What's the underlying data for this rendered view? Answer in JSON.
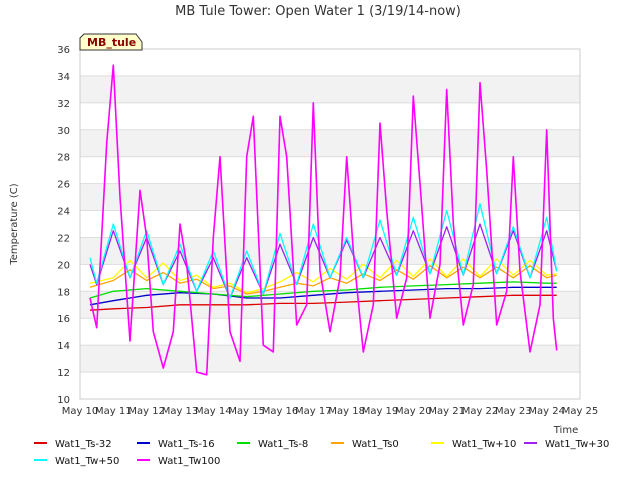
{
  "chart_data": {
    "type": "line",
    "title": "MB Tule Tower: Open Water 1 (3/19/14-now)",
    "xlabel": "Time",
    "ylabel": "Temperature (C)",
    "ylim": [
      10,
      36
    ],
    "yticks": [
      10,
      12,
      14,
      16,
      18,
      20,
      22,
      24,
      26,
      28,
      30,
      32,
      34,
      36
    ],
    "xlim": [
      10,
      25
    ],
    "xticks": [
      10,
      11,
      12,
      13,
      14,
      15,
      16,
      17,
      18,
      19,
      20,
      21,
      22,
      23,
      24,
      25
    ],
    "xtick_labels": [
      "May 10",
      "May 11",
      "May 12",
      "May 13",
      "May 14",
      "May 15",
      "May 16",
      "May 17",
      "May 18",
      "May 19",
      "May 20",
      "May 21",
      "May 22",
      "May 23",
      "May 24",
      "May 25"
    ],
    "grid": true,
    "station_badge": "MB_tule",
    "legend_position": "bottom",
    "series": [
      {
        "name": "Wat1_Ts-32",
        "color": "#dd0000",
        "x": [
          10.3,
          11,
          12,
          13,
          14,
          15,
          16,
          17,
          18,
          19,
          20,
          21,
          22,
          23,
          24,
          24.3
        ],
        "values": [
          16.6,
          16.7,
          16.8,
          17.0,
          17.0,
          17.0,
          17.1,
          17.1,
          17.2,
          17.3,
          17.4,
          17.5,
          17.6,
          17.7,
          17.7,
          17.7
        ]
      },
      {
        "name": "Wat1_Ts-16",
        "color": "#0000cc",
        "x": [
          10.3,
          11,
          12,
          13,
          14,
          15,
          16,
          17,
          18,
          19,
          20,
          21,
          22,
          23,
          24,
          24.3
        ],
        "values": [
          17.0,
          17.3,
          17.7,
          17.9,
          17.8,
          17.5,
          17.5,
          17.7,
          17.9,
          18.0,
          18.1,
          18.2,
          18.2,
          18.3,
          18.3,
          18.3
        ]
      },
      {
        "name": "Wat1_Ts-8",
        "color": "#00dd00",
        "x": [
          10.3,
          11,
          12,
          13,
          14,
          15,
          16,
          17,
          18,
          19,
          20,
          21,
          22,
          23,
          24,
          24.3
        ],
        "values": [
          17.5,
          18.0,
          18.2,
          18.0,
          17.8,
          17.6,
          17.8,
          18.0,
          18.1,
          18.3,
          18.4,
          18.5,
          18.6,
          18.7,
          18.6,
          18.6
        ]
      },
      {
        "name": "Wat1_Ts0",
        "color": "#ffa500",
        "x": [
          10.3,
          11,
          11.5,
          12,
          12.5,
          13,
          13.5,
          14,
          14.5,
          15,
          15.5,
          16,
          16.5,
          17,
          17.5,
          18,
          18.5,
          19,
          19.5,
          20,
          20.5,
          21,
          21.5,
          22,
          22.5,
          23,
          23.5,
          24,
          24.3
        ],
        "values": [
          18.3,
          18.8,
          19.6,
          18.8,
          19.4,
          18.6,
          18.9,
          18.2,
          18.4,
          17.8,
          18.0,
          18.3,
          18.6,
          18.4,
          19.0,
          18.6,
          19.3,
          18.8,
          19.6,
          18.9,
          19.9,
          19.0,
          19.8,
          19.0,
          19.8,
          19.0,
          19.9,
          19.0,
          19.2
        ]
      },
      {
        "name": "Wat1_Tw+10",
        "color": "#ffff00",
        "x": [
          10.3,
          11,
          11.5,
          12,
          12.5,
          13,
          13.5,
          14,
          14.5,
          15,
          15.5,
          16,
          16.5,
          17,
          17.5,
          18,
          18.5,
          19,
          19.5,
          20,
          20.5,
          21,
          21.5,
          22,
          22.5,
          23,
          23.5,
          24,
          24.3
        ],
        "values": [
          18.6,
          19.0,
          20.3,
          19.0,
          20.1,
          18.8,
          19.2,
          18.3,
          18.6,
          17.9,
          18.2,
          18.7,
          19.4,
          18.7,
          19.7,
          18.9,
          20.0,
          19.0,
          20.3,
          19.1,
          20.4,
          19.1,
          20.4,
          19.1,
          20.4,
          19.2,
          20.3,
          19.2,
          19.3
        ]
      },
      {
        "name": "Wat1_Tw+30",
        "color": "#a020f0",
        "x": [
          10.3,
          10.5,
          11,
          11.5,
          12,
          12.5,
          13,
          13.5,
          14,
          14.5,
          15,
          15.5,
          16,
          16.5,
          17,
          17.5,
          18,
          18.5,
          19,
          19.5,
          20,
          20.5,
          21,
          21.5,
          22,
          22.5,
          23,
          23.5,
          24,
          24.3
        ],
        "values": [
          20.0,
          18.5,
          22.5,
          19.0,
          22.0,
          18.5,
          21.0,
          18.0,
          20.5,
          17.5,
          20.5,
          17.8,
          21.5,
          18.5,
          22.0,
          19.0,
          21.8,
          19.0,
          22.0,
          19.2,
          22.5,
          19.3,
          22.8,
          19.2,
          23.0,
          19.3,
          22.5,
          19.0,
          22.5,
          19.5
        ]
      },
      {
        "name": "Wat1_Tw+50",
        "color": "#00ffff",
        "x": [
          10.3,
          10.5,
          11,
          11.5,
          12,
          12.5,
          13,
          13.5,
          14,
          14.5,
          15,
          15.5,
          16,
          16.5,
          17,
          17.5,
          18,
          18.5,
          19,
          19.5,
          20,
          20.5,
          21,
          21.5,
          22,
          22.5,
          23,
          23.5,
          24,
          24.3
        ],
        "values": [
          20.5,
          18.6,
          23.0,
          19.0,
          22.5,
          18.5,
          21.5,
          18.0,
          21.0,
          17.5,
          21.0,
          17.8,
          22.3,
          18.5,
          23.0,
          19.0,
          22.0,
          19.0,
          23.3,
          19.2,
          23.5,
          19.3,
          24.0,
          19.2,
          24.5,
          19.3,
          22.8,
          19.0,
          23.5,
          19.5
        ]
      },
      {
        "name": "Wat1_Tw100",
        "color": "#ff00ff",
        "x": [
          10.3,
          10.5,
          10.8,
          11.0,
          11.2,
          11.5,
          11.8,
          12.0,
          12.2,
          12.5,
          12.8,
          13.0,
          13.2,
          13.5,
          13.8,
          14.0,
          14.2,
          14.5,
          14.8,
          15.0,
          15.2,
          15.5,
          15.8,
          16.0,
          16.2,
          16.5,
          16.8,
          17.0,
          17.2,
          17.5,
          17.8,
          18.0,
          18.2,
          18.5,
          18.8,
          19.0,
          19.2,
          19.5,
          19.8,
          20.0,
          20.2,
          20.5,
          20.8,
          21.0,
          21.2,
          21.5,
          21.8,
          22.0,
          22.2,
          22.5,
          22.8,
          23.0,
          23.2,
          23.5,
          23.8,
          24.0,
          24.2,
          24.3
        ],
        "values": [
          17.5,
          15.3,
          29.0,
          34.8,
          25.0,
          14.3,
          25.5,
          22.0,
          15.0,
          12.3,
          15.0,
          23.0,
          20.0,
          12.0,
          11.8,
          22.0,
          28.0,
          15.0,
          12.8,
          28.0,
          31.0,
          14.0,
          13.5,
          31.0,
          28.0,
          15.5,
          17.0,
          32.0,
          19.5,
          15.0,
          19.0,
          28.0,
          21.0,
          13.5,
          17.0,
          30.5,
          24.0,
          16.0,
          19.0,
          32.5,
          26.0,
          16.0,
          20.0,
          33.0,
          23.0,
          15.5,
          18.5,
          33.5,
          27.0,
          15.5,
          18.0,
          28.0,
          19.5,
          13.5,
          17.0,
          30.0,
          16.0,
          13.6
        ]
      }
    ]
  }
}
